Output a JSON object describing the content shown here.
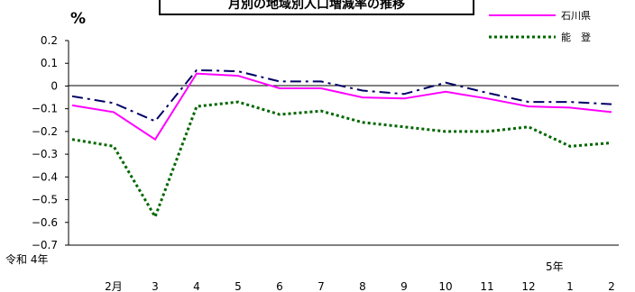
{
  "chart_data": {
    "type": "line",
    "title": "月別の地域別人口増減率の推移",
    "ylabel": "%",
    "ylim": [
      -0.7,
      0.2
    ],
    "yticks": [
      0.2,
      0.1,
      0,
      -0.1,
      -0.2,
      -0.3,
      -0.4,
      -0.5,
      -0.6,
      -0.7
    ],
    "ytick_labels": [
      "0.2",
      "0.1",
      "0",
      "−0.1",
      "−0.2",
      "−0.3",
      "−0.4",
      "−0.5",
      "−0.6",
      "−0.7"
    ],
    "categories": [
      "令和 4年1月",
      "2月",
      "3",
      "4",
      "5",
      "6",
      "7",
      "8",
      "9",
      "10",
      "11",
      "12",
      "5年1月",
      "2"
    ],
    "x_labels": {
      "start_label": "令和 4年",
      "year2_label": "5年",
      "months": [
        "2月",
        "3",
        "4",
        "5",
        "6",
        "7",
        "8",
        "9",
        "10",
        "11",
        "12",
        "1",
        "2"
      ]
    },
    "series": [
      {
        "name": "石川県",
        "color": "#ff00ff",
        "style": "solid",
        "values": [
          -0.085,
          -0.115,
          -0.235,
          0.055,
          0.045,
          -0.01,
          -0.01,
          -0.05,
          -0.055,
          -0.025,
          -0.055,
          -0.09,
          -0.095,
          -0.115
        ]
      },
      {
        "name": "",
        "color": "#000066",
        "style": "dashdot",
        "values": [
          -0.045,
          -0.075,
          -0.155,
          0.07,
          0.065,
          0.02,
          0.02,
          -0.02,
          -0.035,
          0.015,
          -0.03,
          -0.07,
          -0.07,
          -0.08
        ]
      },
      {
        "name": "能　登",
        "color": "#006600",
        "style": "dotted",
        "values": [
          -0.235,
          -0.265,
          -0.575,
          -0.09,
          -0.07,
          -0.125,
          -0.11,
          -0.16,
          -0.18,
          -0.2,
          -0.2,
          -0.18,
          -0.265,
          -0.25
        ]
      }
    ],
    "grid": false,
    "legend_position": "top-right"
  }
}
